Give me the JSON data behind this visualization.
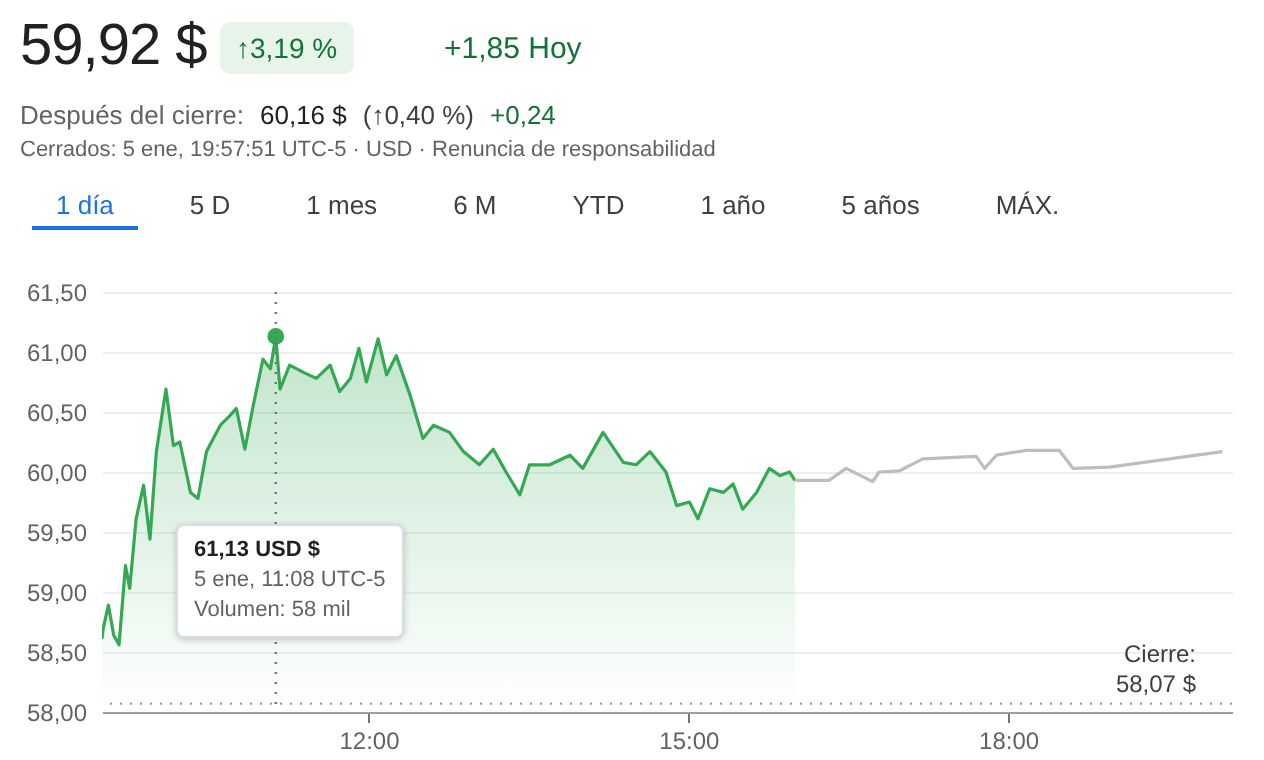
{
  "chart_data": {
    "type": "area",
    "title": "59,92 $",
    "series": [
      {
        "color": "#34a853",
        "x": [
          9.5,
          9.51,
          9.56,
          9.61,
          9.66,
          9.72,
          9.76,
          9.82,
          9.89,
          9.95,
          10.01,
          10.1,
          10.17,
          10.23,
          10.33,
          10.4,
          10.48,
          10.61,
          10.7,
          10.76,
          10.84,
          10.92,
          11.01,
          11.08,
          11.13,
          11.17,
          11.26,
          11.39,
          11.51,
          11.64,
          11.73,
          11.83,
          11.91,
          11.98,
          12.09,
          12.17,
          12.26,
          12.39,
          12.51,
          12.61,
          12.76,
          12.89,
          13.04,
          13.17,
          13.29,
          13.42,
          13.51,
          13.7,
          13.89,
          14.01,
          14.2,
          14.39,
          14.51,
          14.64,
          14.79,
          14.89,
          15.01,
          15.09,
          15.2,
          15.33,
          15.42,
          15.51,
          15.64,
          15.76,
          15.86,
          15.95,
          16.0
        ],
        "values": [
          58.61,
          58.69,
          58.89,
          58.64,
          58.56,
          59.22,
          59.03,
          59.61,
          59.89,
          59.44,
          60.17,
          60.69,
          60.22,
          60.25,
          59.83,
          59.78,
          60.17,
          60.39,
          60.47,
          60.53,
          60.19,
          60.56,
          60.94,
          60.86,
          61.13,
          60.69,
          60.89,
          60.83,
          60.78,
          60.89,
          60.67,
          60.78,
          61.03,
          60.75,
          61.11,
          60.81,
          60.97,
          60.64,
          60.28,
          60.39,
          60.33,
          60.17,
          60.06,
          60.19,
          60.0,
          59.81,
          60.06,
          60.06,
          60.14,
          60.03,
          60.33,
          60.08,
          60.06,
          60.17,
          60.0,
          59.72,
          59.75,
          59.61,
          59.86,
          59.83,
          59.9,
          59.69,
          59.83,
          60.03,
          59.97,
          60.0,
          59.93
        ]
      },
      {
        "type": "line",
        "color": "#bdbdbd",
        "x": [
          16.0,
          16.32,
          16.48,
          16.73,
          16.79,
          16.98,
          17.2,
          17.7,
          17.78,
          17.89,
          18.17,
          18.48,
          18.61,
          18.95,
          20.01
        ],
        "values": [
          59.93,
          59.93,
          60.03,
          59.92,
          60.0,
          60.01,
          60.11,
          60.13,
          60.03,
          60.14,
          60.18,
          60.18,
          60.03,
          60.04,
          60.17
        ]
      },
      {
        "type": "scatter",
        "color": "#34a853",
        "marker": "circle",
        "x": [
          11.13
        ],
        "values": [
          61.13
        ]
      }
    ],
    "xlim": [
      9.5,
      20.1
    ],
    "xticks": [
      {
        "value": 12,
        "label": "12:00"
      },
      {
        "value": 15,
        "label": "15:00"
      },
      {
        "value": 18,
        "label": "18:00"
      }
    ],
    "ylim": [
      58,
      61.5
    ],
    "yticks": [
      {
        "value": 58,
        "label": "58,00"
      },
      {
        "value": 58.5,
        "label": "58,50"
      },
      {
        "value": 59,
        "label": "59,00"
      },
      {
        "value": 59.5,
        "label": "59,50"
      },
      {
        "value": 60,
        "label": "60,00"
      },
      {
        "value": 60.5,
        "label": "60,50"
      },
      {
        "value": 61,
        "label": "61,00"
      },
      {
        "value": 61.5,
        "label": "61,50"
      }
    ],
    "grid": "y",
    "line_style": "solid",
    "ref_lines": [
      {
        "axis": "y",
        "value": 58.07,
        "label": "Cierre: 58,07 $",
        "color": "#9aa0a6",
        "line_style": "dotted"
      },
      {
        "axis": "x",
        "value": 11.13,
        "color": "#70757a",
        "line_style": "dotted"
      }
    ],
    "annotations": [
      "61,13 USD $",
      "5 ene, 11:08 UTC-5",
      "Volumen: 58 mil",
      "↑3,19 %",
      "+1,85 Hoy",
      "Después del cierre:",
      "60,16 $",
      "(↑0,40 %)",
      "+0,24",
      "Cerrados: 5 ene, 19:57:51 UTC-5 · USD · Renuncia de responsabilidad",
      "1 día",
      "5 D",
      "1 mes",
      "6 M",
      "YTD",
      "1 año",
      "5 años",
      "MÁX."
    ]
  }
}
